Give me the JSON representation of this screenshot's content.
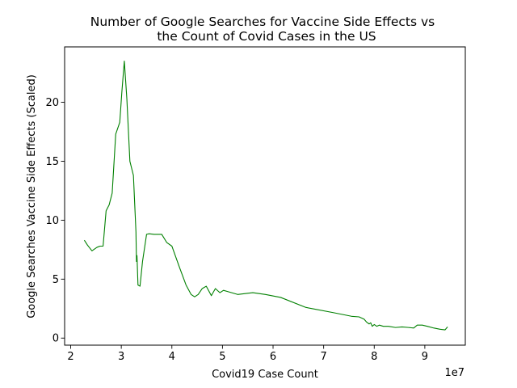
{
  "chart_data": {
    "type": "line",
    "title_lines": [
      "Number of Google Searches for Vaccine Side Effects vs",
      "the Count of Covid Cases in the US"
    ],
    "xlabel": "Covid19 Case Count",
    "ylabel": "Google Searches Vaccine Side Effects (Scaled)",
    "x_offset_label": "1e7",
    "x_multiplier": 10000000,
    "xlim": [
      1.88,
      9.8
    ],
    "ylim": [
      -0.6,
      24.7
    ],
    "xticks": [
      2,
      3,
      4,
      5,
      6,
      7,
      8,
      9
    ],
    "yticks": [
      0,
      5,
      10,
      15,
      20
    ],
    "grid": false,
    "line_color": "#008000",
    "series": [
      {
        "x": [
          2.27,
          2.33,
          2.42,
          2.52,
          2.58,
          2.64,
          2.7,
          2.76,
          2.82,
          2.89,
          2.97,
          3.01,
          3.06,
          3.11,
          3.17,
          3.24,
          3.29,
          3.3,
          3.31,
          3.33,
          3.37,
          3.42,
          3.5,
          3.55,
          3.65,
          3.8,
          3.9,
          4.0,
          4.15,
          4.28,
          4.38,
          4.45,
          4.52,
          4.6,
          4.68,
          4.78,
          4.86,
          4.95,
          5.02,
          5.1,
          5.3,
          5.6,
          5.85,
          6.15,
          6.65,
          7.2,
          7.55,
          7.7,
          7.8,
          7.85,
          7.9,
          7.93,
          7.96,
          8.0,
          8.05,
          8.1,
          8.18,
          8.28,
          8.42,
          8.55,
          8.68,
          8.78,
          8.85,
          8.95,
          9.05,
          9.18,
          9.3,
          9.4,
          9.45
        ],
        "y": [
          8.3,
          7.9,
          7.4,
          7.7,
          7.8,
          7.8,
          10.8,
          11.3,
          12.3,
          17.3,
          18.3,
          20.8,
          23.5,
          20.3,
          15.0,
          13.8,
          9.0,
          6.5,
          7.0,
          4.5,
          4.4,
          6.5,
          8.8,
          8.85,
          8.8,
          8.8,
          8.1,
          7.8,
          6.0,
          4.5,
          3.7,
          3.5,
          3.7,
          4.2,
          4.4,
          3.6,
          4.2,
          3.85,
          4.05,
          3.95,
          3.7,
          3.85,
          3.7,
          3.45,
          2.6,
          2.15,
          1.85,
          1.8,
          1.6,
          1.35,
          1.2,
          1.3,
          1.0,
          1.15,
          1.0,
          1.1,
          1.0,
          1.0,
          0.9,
          0.95,
          0.9,
          0.85,
          1.1,
          1.1,
          1.0,
          0.85,
          0.75,
          0.7,
          0.95
        ]
      }
    ]
  }
}
